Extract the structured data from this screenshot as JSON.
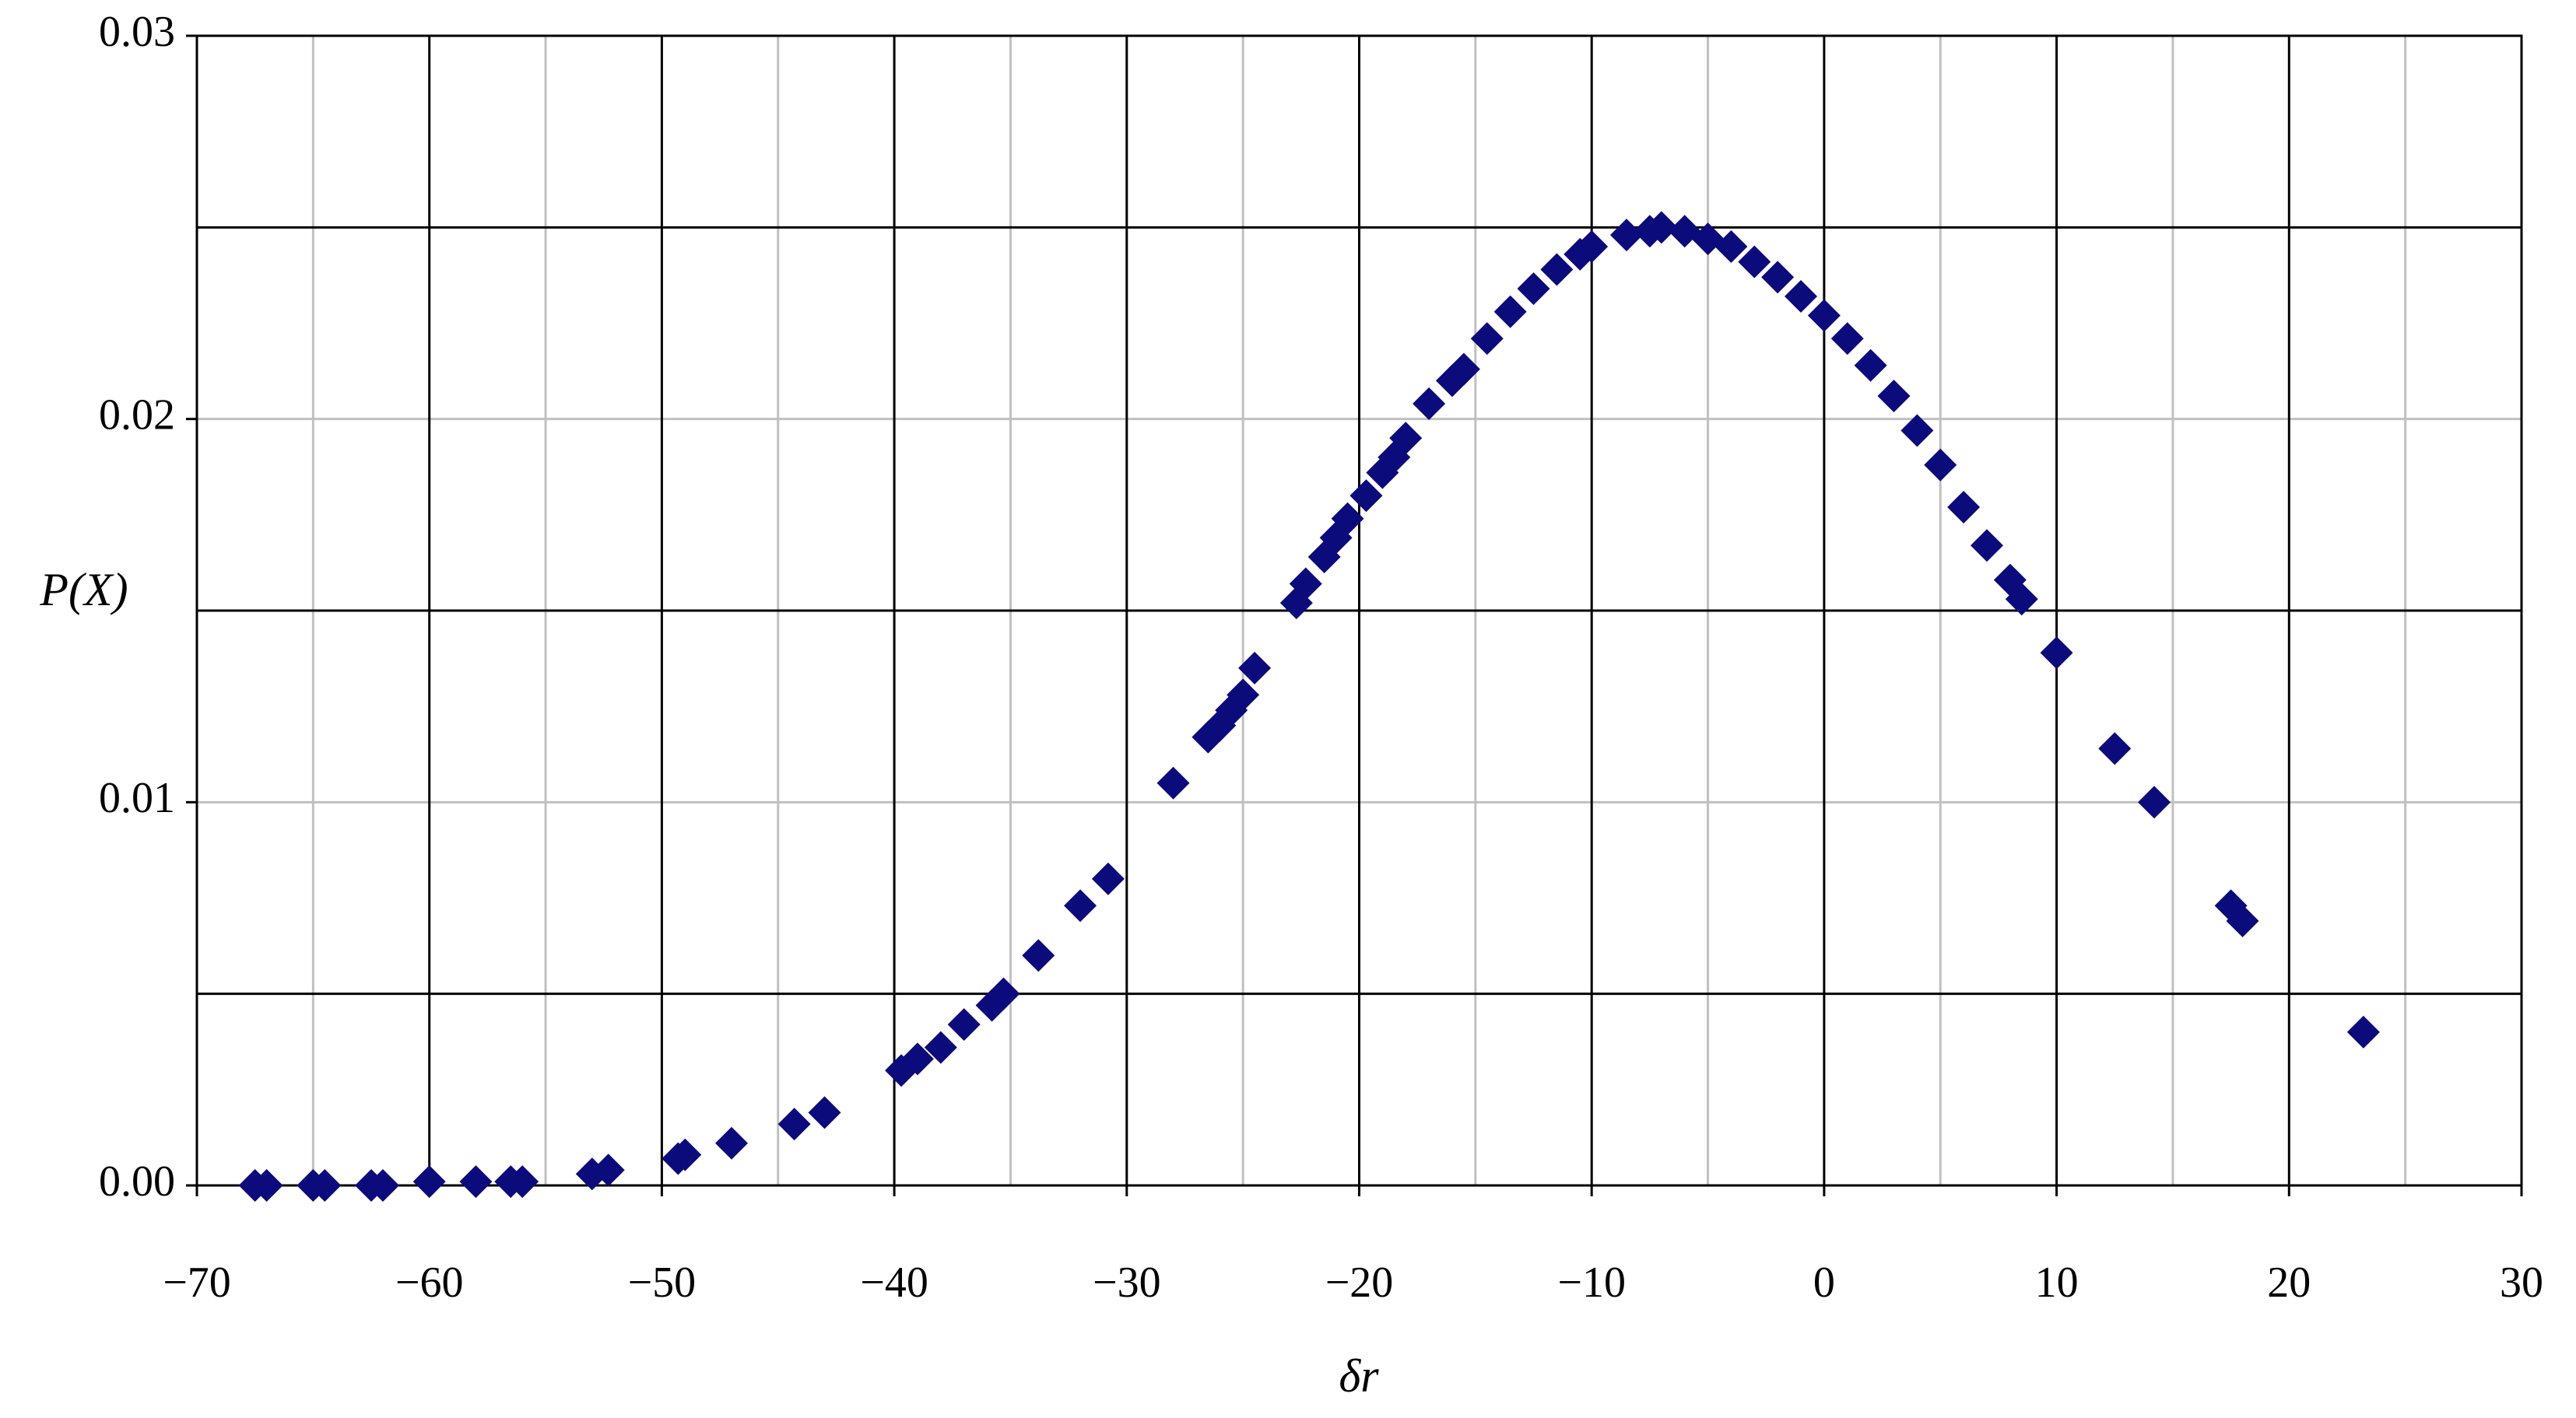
{
  "chart_data": {
    "type": "scatter",
    "x_label": "δr",
    "y_label": "P(X)",
    "color": "#0b0b7c",
    "x": [
      -67.5,
      -67,
      -65,
      -64.5,
      -62.5,
      -62,
      -60,
      -58,
      -56.5,
      -56,
      -53,
      -52.3,
      -49.3,
      -49,
      -47,
      -44.3,
      -43,
      -39.7,
      -39,
      -38,
      -37,
      -35.8,
      -35.3,
      -33.8,
      -32,
      -30.8,
      -28,
      -26.5,
      -26,
      -25.5,
      -25,
      -24.5,
      -22.7,
      -22.3,
      -21.5,
      -21,
      -20.5,
      -19.7,
      -19,
      -18.5,
      -18,
      -17,
      -16,
      -15.5,
      -14.5,
      -13.5,
      -12.5,
      -11.5,
      -10.5,
      -10,
      -8.5,
      -7.5,
      -7,
      -6,
      -5,
      -4,
      -3,
      -2,
      -1,
      0,
      1,
      2,
      3,
      4,
      5,
      6,
      7,
      8,
      8.5,
      10,
      12.5,
      14.2,
      17.5,
      18,
      23.2
    ],
    "values": [
      0,
      0,
      0,
      0,
      0,
      0,
      0.0001,
      0.0001,
      0.0001,
      0.0001,
      0.0003,
      0.0004,
      0.0007,
      0.0008,
      0.0011,
      0.0016,
      0.0019,
      0.003,
      0.0033,
      0.0036,
      0.0042,
      0.0047,
      0.005,
      0.006,
      0.0073,
      0.008,
      0.0105,
      0.0117,
      0.012,
      0.0124,
      0.0128,
      0.0135,
      0.0152,
      0.0157,
      0.0164,
      0.0169,
      0.0174,
      0.018,
      0.0186,
      0.019,
      0.0195,
      0.0204,
      0.021,
      0.0213,
      0.0221,
      0.0228,
      0.0234,
      0.0239,
      0.0243,
      0.0245,
      0.0248,
      0.0249,
      0.025,
      0.0249,
      0.0247,
      0.0245,
      0.0241,
      0.0237,
      0.0232,
      0.0227,
      0.0221,
      0.0214,
      0.0206,
      0.0197,
      0.0188,
      0.0177,
      0.0167,
      0.0158,
      0.0153,
      0.0139,
      0.0114,
      0.01,
      0.0073,
      0.0069,
      0.004
    ],
    "xlim": [
      -70,
      30
    ],
    "xticks": [
      {
        "value": -70,
        "label": "−70"
      },
      {
        "value": -60,
        "label": "−60"
      },
      {
        "value": -50,
        "label": "−50"
      },
      {
        "value": -40,
        "label": "−40"
      },
      {
        "value": -30,
        "label": "−30"
      },
      {
        "value": -20,
        "label": "−20"
      },
      {
        "value": -10,
        "label": "−10"
      },
      0,
      10,
      20,
      30
    ],
    "x_minor_ticks": [
      -65,
      -55,
      -45,
      -35,
      -25,
      -15,
      -5,
      5,
      15,
      25
    ],
    "ylim": [
      0,
      0.03
    ],
    "yticks": [
      {
        "value": 0,
        "label": "0.00"
      },
      0.01,
      0.02,
      0.03
    ],
    "y_minor_ticks": [
      0.005,
      0.015,
      0.025
    ],
    "grid": true
  }
}
